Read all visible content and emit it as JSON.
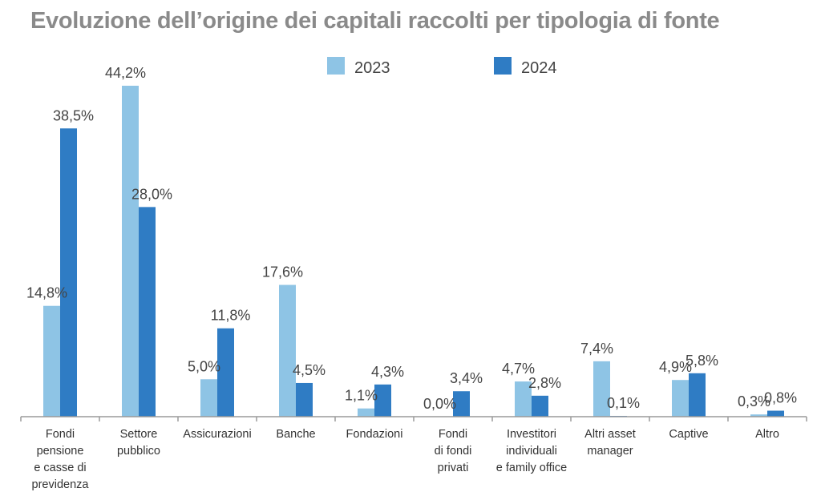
{
  "chart_data": {
    "type": "bar",
    "title": "Evoluzione dell’origine dei capitali raccolti per tipologia di fonte",
    "categories": [
      [
        "Fondi",
        "pensione",
        "e casse di",
        "previdenza"
      ],
      [
        "Settore",
        "pubblico"
      ],
      [
        "Assicurazioni"
      ],
      [
        "Banche"
      ],
      [
        "Fondazioni"
      ],
      [
        "Fondi",
        "di fondi",
        "privati"
      ],
      [
        "Investitori",
        "individuali",
        "e family office"
      ],
      [
        "Altri asset",
        "manager"
      ],
      [
        "Captive"
      ],
      [
        "Altro"
      ]
    ],
    "series": [
      {
        "name": "2023",
        "color": "#8ec4e5",
        "values": [
          14.8,
          44.2,
          5.0,
          17.6,
          1.1,
          0.0,
          4.7,
          7.4,
          4.9,
          0.3
        ],
        "labels": [
          "14,8%",
          "44,2%",
          "5,0%",
          "17,6%",
          "1,1%",
          "0,0%",
          "4,7%",
          "7,4%",
          "4,9%",
          "0,3%"
        ]
      },
      {
        "name": "2024",
        "color": "#2f7cc4",
        "values": [
          38.5,
          28.0,
          11.8,
          4.5,
          4.3,
          3.4,
          2.8,
          0.1,
          5.8,
          0.8
        ],
        "labels": [
          "38,5%",
          "28,0%",
          "11,8%",
          "4,5%",
          "4,3%",
          "3,4%",
          "2,8%",
          "0,1%",
          "5,8%",
          "0,8%"
        ]
      }
    ],
    "ylim": [
      0,
      44.2
    ],
    "grid": false,
    "legend_position": "top-center"
  }
}
